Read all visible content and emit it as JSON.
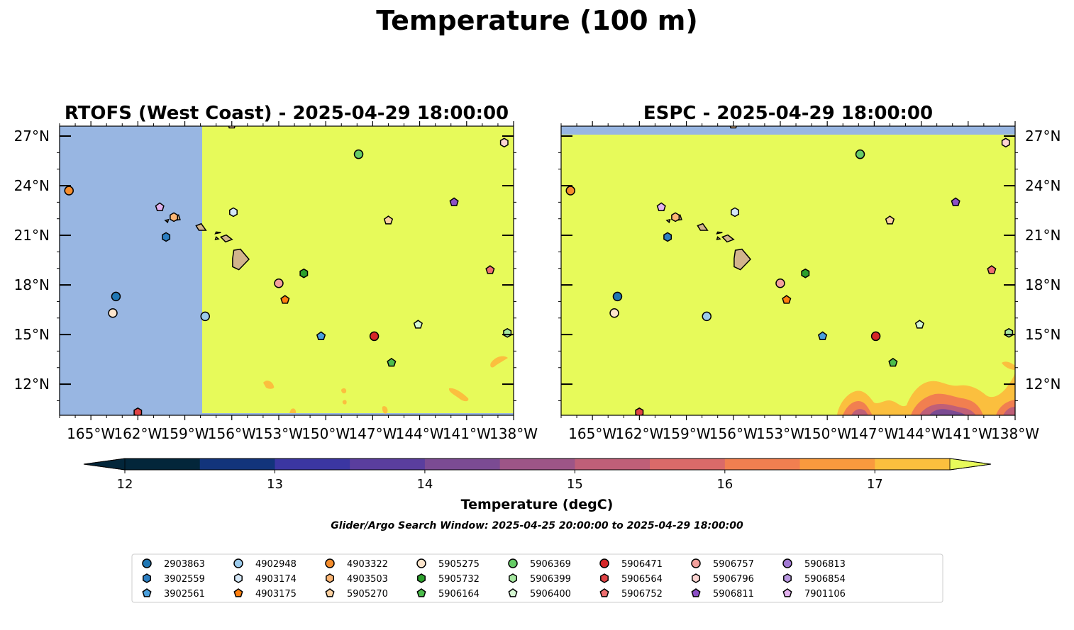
{
  "figure": {
    "title": "Temperature (100 m)",
    "search_window": "Glider/Argo Search Window: 2025-04-25 20:00:00 to 2025-04-29 18:00:00"
  },
  "colors": {
    "land": "#d2b48c",
    "nodata": "#98b6e2",
    "warm": "#e7fa5a"
  },
  "chart_data": [
    {
      "type": "heatmap",
      "title": "RTOFS (West Coast) - 2025-04-29 18:00:00",
      "xlim": [
        -167,
        -138
      ],
      "ylim": [
        10.2,
        27.6
      ],
      "xticks": [
        "165°W",
        "162°W",
        "159°W",
        "156°W",
        "153°W",
        "150°W",
        "147°W",
        "144°W",
        "141°W",
        "138°W"
      ],
      "yticks": [
        "12°N",
        "15°N",
        "18°N",
        "21°N",
        "24°N",
        "27°N"
      ],
      "field": "100 m temperature; no data west of 157.9°W; above 17.5 degC almost everywhere, small 16.5–17.5 degC patches near 154–138°W, 11–13°N"
    },
    {
      "type": "heatmap",
      "title": "ESPC - 2025-04-29 18:00:00",
      "xlim": [
        -167,
        -138
      ],
      "ylim": [
        10.2,
        27.6
      ],
      "xticks": [
        "165°W",
        "162°W",
        "159°W",
        "156°W",
        "153°W",
        "150°W",
        "147°W",
        "144°W",
        "141°W",
        "138°W"
      ],
      "yticks": [
        "12°N",
        "15°N",
        "18°N",
        "21°N",
        "24°N",
        "27°N"
      ],
      "field": "100 m temperature; no data north of 27°N; above 17.5 degC almost everywhere, cooler 14–16.5 degC patches in the southeast corner near 149–138°W, 10–12°N"
    }
  ],
  "colorbar": {
    "label": "Temperature (degC)",
    "ticks": [
      "12",
      "13",
      "14",
      "15",
      "16",
      "17"
    ],
    "levels": [
      12.0,
      12.5,
      13.0,
      13.5,
      14.0,
      14.5,
      15.0,
      15.5,
      16.0,
      16.5,
      17.0,
      17.5
    ],
    "colors": [
      "#03263a",
      "#12347b",
      "#3b36a2",
      "#5a3e9e",
      "#7b4b93",
      "#9d5587",
      "#bf5f78",
      "#da6a69",
      "#f17f50",
      "#f99a3e",
      "#fbbf3e",
      "#f5da3e"
    ],
    "extend": "both",
    "under_color": "#03263a",
    "over_color": "#e7fa5a"
  },
  "platforms": [
    {
      "id": "2903863",
      "marker": "circle",
      "color": "#1f77b4",
      "lon": -163.4,
      "lat": 17.3
    },
    {
      "id": "3902559",
      "marker": "hexagon",
      "color": "#2d7fc2",
      "lon": -160.2,
      "lat": 20.9
    },
    {
      "id": "3902561",
      "marker": "pentagon",
      "color": "#4a9fdc",
      "lon": -150.3,
      "lat": 14.9
    },
    {
      "id": "4902948",
      "marker": "circle",
      "color": "#9ccbec",
      "lon": -157.7,
      "lat": 16.1
    },
    {
      "id": "4903174",
      "marker": "hexagon",
      "color": "#d4e7f7",
      "lon": -155.9,
      "lat": 22.4
    },
    {
      "id": "4903175",
      "marker": "pentagon",
      "color": "#ff7f0e",
      "lon": -152.6,
      "lat": 17.1
    },
    {
      "id": "4903322",
      "marker": "circle",
      "color": "#f58d2d",
      "lon": -166.4,
      "lat": 23.7
    },
    {
      "id": "4903503",
      "marker": "hexagon",
      "color": "#fbb574",
      "lon": -159.7,
      "lat": 22.1
    },
    {
      "id": "5905270",
      "marker": "pentagon",
      "color": "#fcd0a0",
      "lon": -146.0,
      "lat": 21.9
    },
    {
      "id": "5905275",
      "marker": "circle",
      "color": "#fde5cc",
      "lon": -163.6,
      "lat": 16.3
    },
    {
      "id": "5905732",
      "marker": "hexagon",
      "color": "#2ca02c",
      "lon": -151.4,
      "lat": 18.7
    },
    {
      "id": "5906164",
      "marker": "pentagon",
      "color": "#4cbc4c",
      "lon": -145.8,
      "lat": 13.3
    },
    {
      "id": "5906369",
      "marker": "circle",
      "color": "#66cc66",
      "lon": -147.9,
      "lat": 25.9
    },
    {
      "id": "5906399",
      "marker": "hexagon",
      "color": "#a6e8a0",
      "lon": -138.4,
      "lat": 15.1
    },
    {
      "id": "5906400",
      "marker": "pentagon",
      "color": "#d6f8d2",
      "lon": -144.1,
      "lat": 15.6
    },
    {
      "id": "5906471",
      "marker": "circle",
      "color": "#d62728",
      "lon": -146.9,
      "lat": 14.9
    },
    {
      "id": "5906564",
      "marker": "hexagon",
      "color": "#e04345",
      "lon": -162.0,
      "lat": 10.3
    },
    {
      "id": "5906752",
      "marker": "pentagon",
      "color": "#ee6f70",
      "lon": -139.5,
      "lat": 18.9
    },
    {
      "id": "5906757",
      "marker": "circle",
      "color": "#f3a09c",
      "lon": -153.0,
      "lat": 18.1
    },
    {
      "id": "5906796",
      "marker": "hexagon",
      "color": "#fcd5d2",
      "lon": -138.6,
      "lat": 26.6
    },
    {
      "id": "5906811",
      "marker": "pentagon",
      "color": "#8c4fc6",
      "lon": -141.8,
      "lat": 23.0
    },
    {
      "id": "5906813",
      "marker": "circle",
      "color": "#a178d3",
      "lon": null,
      "lat": null
    },
    {
      "id": "5906854",
      "marker": "hexagon",
      "color": "#b897e0",
      "lon": null,
      "lat": null
    },
    {
      "id": "7901106",
      "marker": "pentagon",
      "color": "#e3b2ef",
      "lon": -160.6,
      "lat": 22.7
    }
  ],
  "offmap_marker": {
    "marker": "pentagon",
    "color": "#fcd0a0",
    "lon": -156.0,
    "lat": 27.7
  }
}
